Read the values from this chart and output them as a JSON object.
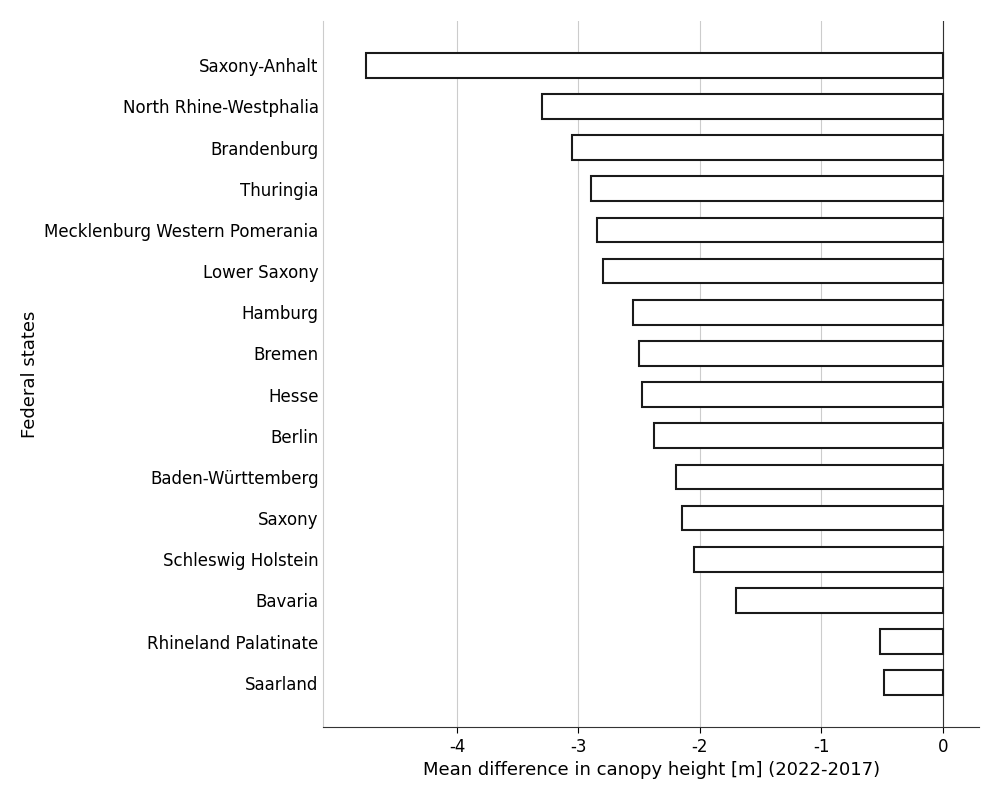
{
  "categories": [
    "Saxony-Anhalt",
    "North Rhine-Westphalia",
    "Brandenburg",
    "Thuringia",
    "Mecklenburg Western Pomerania",
    "Lower Saxony",
    "Hamburg",
    "Bremen",
    "Hesse",
    "Berlin",
    "Baden-Württemberg",
    "Saxony",
    "Schleswig Holstein",
    "Bavaria",
    "Rhineland Palatinate",
    "Saarland"
  ],
  "values": [
    -4.75,
    -3.3,
    -3.05,
    -2.9,
    -2.85,
    -2.8,
    -2.55,
    -2.5,
    -2.48,
    -2.38,
    -2.2,
    -2.15,
    -2.05,
    -1.7,
    -0.52,
    -0.48
  ],
  "bar_color": "#ffffff",
  "bar_edgecolor": "#1a1a1a",
  "bar_linewidth": 1.5,
  "bar_height": 0.6,
  "xlabel": "Mean difference in canopy height [m] (2022-2017)",
  "ylabel": "Federal states",
  "xlim": [
    -5.1,
    0.3
  ],
  "xticks": [
    -4,
    -3,
    -2,
    -1,
    0
  ],
  "xtick_labels": [
    "-4",
    "-3",
    "-2",
    "-1",
    "0"
  ],
  "grid_color": "#cccccc",
  "grid_linewidth": 0.8,
  "background_color": "#ffffff",
  "axes_background": "#ffffff",
  "xlabel_fontsize": 13,
  "ylabel_fontsize": 13,
  "tick_fontsize": 12
}
